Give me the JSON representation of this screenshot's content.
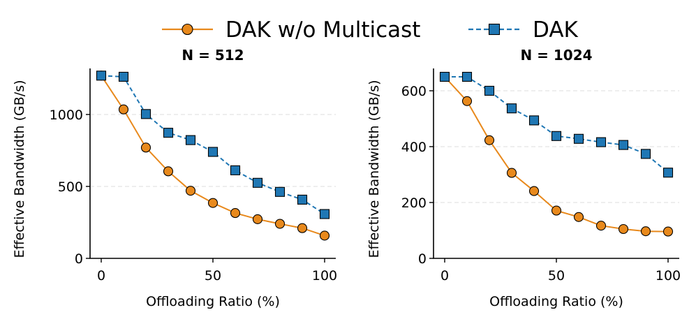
{
  "legend": {
    "placement": "top-center",
    "entries": [
      {
        "label": "DAK w/o Multicast",
        "color": "#e8891c",
        "marker": "circle",
        "line": "solid"
      },
      {
        "label": "DAK",
        "color": "#1f77b4",
        "marker": "square",
        "line": "dashed"
      }
    ]
  },
  "chart_data": [
    {
      "type": "line",
      "title": "N = 512",
      "xlabel": "Offloading Ratio (%)",
      "ylabel": "Effective Bandwidth (GB/s)",
      "xlim": [
        -5,
        105
      ],
      "ylim": [
        0,
        1320
      ],
      "xticks": [
        0,
        50,
        100
      ],
      "yticks": [
        0,
        500,
        1000
      ],
      "grid": "y-dashed",
      "x": [
        0,
        10,
        20,
        30,
        40,
        50,
        60,
        70,
        80,
        90,
        100
      ],
      "series": [
        {
          "name": "DAK w/o Multicast",
          "values": [
            1270,
            1035,
            770,
            605,
            470,
            385,
            315,
            272,
            240,
            210,
            158
          ]
        },
        {
          "name": "DAK",
          "values": [
            1270,
            1262,
            1003,
            873,
            822,
            740,
            612,
            525,
            462,
            408,
            308
          ]
        }
      ]
    },
    {
      "type": "line",
      "title": "N = 1024",
      "xlabel": "Offloading Ratio (%)",
      "ylabel": "Effective Bandwidth (GB/s)",
      "xlim": [
        -5,
        105
      ],
      "ylim": [
        0,
        680
      ],
      "xticks": [
        0,
        50,
        100
      ],
      "yticks": [
        0,
        200,
        400,
        600
      ],
      "grid": "y-dashed",
      "x": [
        0,
        10,
        20,
        30,
        40,
        50,
        60,
        70,
        80,
        90,
        100
      ],
      "series": [
        {
          "name": "DAK w/o Multicast",
          "values": [
            650,
            563,
            423,
            306,
            241,
            171,
            148,
            117,
            105,
            97,
            96
          ]
        },
        {
          "name": "DAK",
          "values": [
            650,
            650,
            600,
            537,
            494,
            438,
            428,
            416,
            406,
            374,
            307
          ]
        }
      ]
    }
  ]
}
